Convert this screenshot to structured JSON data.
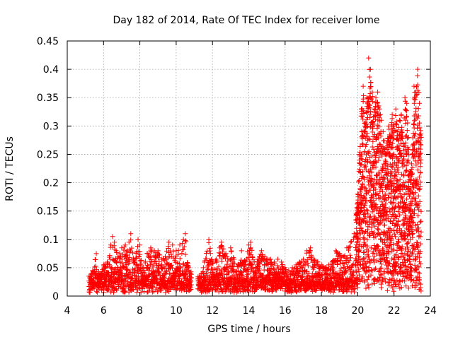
{
  "chart_data": {
    "type": "scatter",
    "title": "Day 182 of 2014, Rate Of TEC Index for receiver lome",
    "xlabel": "GPS time / hours",
    "ylabel": "ROTI / TECUs",
    "xlim": [
      4,
      24
    ],
    "ylim": [
      0,
      0.45
    ],
    "x_ticks": [
      4,
      6,
      8,
      10,
      12,
      14,
      16,
      18,
      20,
      22,
      24
    ],
    "x_tick_labels": [
      "4",
      "6",
      "8",
      "10",
      "12",
      "14",
      "16",
      "18",
      "20",
      "22",
      "24"
    ],
    "y_ticks": [
      0,
      0.05,
      0.1,
      0.15,
      0.2,
      0.25,
      0.3,
      0.35,
      0.4,
      0.45
    ],
    "y_tick_labels": [
      "0",
      "0.05",
      "0.1",
      "0.15",
      "0.2",
      "0.25",
      "0.3",
      "0.35",
      "0.4",
      "0.45"
    ],
    "grid": true,
    "marker": "+",
    "series_color": "#ff0000",
    "data_gap_hours": [
      10.85,
      11.2
    ],
    "series": [
      {
        "name": "ROTI",
        "points": [
          [
            5.2,
            0.035
          ],
          [
            5.4,
            0.045
          ],
          [
            5.6,
            0.075
          ],
          [
            5.8,
            0.04
          ],
          [
            6.0,
            0.055
          ],
          [
            6.2,
            0.06
          ],
          [
            6.4,
            0.09
          ],
          [
            6.5,
            0.105
          ],
          [
            6.6,
            0.095
          ],
          [
            6.8,
            0.07
          ],
          [
            7.0,
            0.085
          ],
          [
            7.2,
            0.09
          ],
          [
            7.4,
            0.095
          ],
          [
            7.5,
            0.11
          ],
          [
            7.7,
            0.06
          ],
          [
            7.9,
            0.1
          ],
          [
            8.0,
            0.09
          ],
          [
            8.2,
            0.05
          ],
          [
            8.4,
            0.075
          ],
          [
            8.6,
            0.085
          ],
          [
            8.8,
            0.08
          ],
          [
            9.0,
            0.08
          ],
          [
            9.2,
            0.065
          ],
          [
            9.4,
            0.07
          ],
          [
            9.6,
            0.095
          ],
          [
            9.8,
            0.09
          ],
          [
            10.0,
            0.08
          ],
          [
            10.2,
            0.09
          ],
          [
            10.4,
            0.1
          ],
          [
            10.5,
            0.11
          ],
          [
            10.7,
            0.05
          ],
          [
            11.3,
            0.035
          ],
          [
            11.5,
            0.05
          ],
          [
            11.8,
            0.1
          ],
          [
            12.0,
            0.06
          ],
          [
            12.2,
            0.065
          ],
          [
            12.4,
            0.085
          ],
          [
            12.5,
            0.095
          ],
          [
            12.8,
            0.07
          ],
          [
            13.0,
            0.085
          ],
          [
            13.2,
            0.065
          ],
          [
            13.4,
            0.055
          ],
          [
            13.6,
            0.08
          ],
          [
            13.8,
            0.06
          ],
          [
            14.0,
            0.09
          ],
          [
            14.1,
            0.095
          ],
          [
            14.3,
            0.06
          ],
          [
            14.5,
            0.065
          ],
          [
            14.7,
            0.08
          ],
          [
            15.0,
            0.065
          ],
          [
            15.2,
            0.065
          ],
          [
            15.4,
            0.06
          ],
          [
            15.6,
            0.065
          ],
          [
            15.8,
            0.06
          ],
          [
            16.0,
            0.05
          ],
          [
            16.2,
            0.045
          ],
          [
            16.4,
            0.05
          ],
          [
            16.6,
            0.055
          ],
          [
            16.8,
            0.06
          ],
          [
            17.0,
            0.065
          ],
          [
            17.2,
            0.08
          ],
          [
            17.4,
            0.085
          ],
          [
            17.6,
            0.065
          ],
          [
            17.8,
            0.06
          ],
          [
            18.0,
            0.055
          ],
          [
            18.2,
            0.05
          ],
          [
            18.4,
            0.055
          ],
          [
            18.6,
            0.06
          ],
          [
            18.8,
            0.08
          ],
          [
            19.0,
            0.075
          ],
          [
            19.2,
            0.07
          ],
          [
            19.4,
            0.085
          ],
          [
            19.6,
            0.095
          ],
          [
            19.8,
            0.11
          ],
          [
            20.0,
            0.18
          ],
          [
            20.1,
            0.25
          ],
          [
            20.2,
            0.33
          ],
          [
            20.3,
            0.37
          ],
          [
            20.4,
            0.3
          ],
          [
            20.5,
            0.35
          ],
          [
            20.6,
            0.42
          ],
          [
            20.7,
            0.4
          ],
          [
            20.8,
            0.36
          ],
          [
            20.9,
            0.33
          ],
          [
            21.0,
            0.35
          ],
          [
            21.1,
            0.36
          ],
          [
            21.2,
            0.33
          ],
          [
            21.3,
            0.31
          ],
          [
            21.4,
            0.29
          ],
          [
            21.5,
            0.26
          ],
          [
            21.6,
            0.27
          ],
          [
            21.7,
            0.3
          ],
          [
            21.8,
            0.28
          ],
          [
            21.9,
            0.32
          ],
          [
            22.0,
            0.3
          ],
          [
            22.1,
            0.33
          ],
          [
            22.2,
            0.29
          ],
          [
            22.3,
            0.31
          ],
          [
            22.4,
            0.32
          ],
          [
            22.5,
            0.27
          ],
          [
            22.6,
            0.35
          ],
          [
            22.7,
            0.34
          ],
          [
            22.8,
            0.28
          ],
          [
            22.9,
            0.22
          ],
          [
            23.0,
            0.25
          ],
          [
            23.1,
            0.37
          ],
          [
            23.2,
            0.36
          ],
          [
            23.3,
            0.4
          ],
          [
            23.4,
            0.34
          ],
          [
            23.5,
            0.28
          ]
        ]
      }
    ]
  }
}
